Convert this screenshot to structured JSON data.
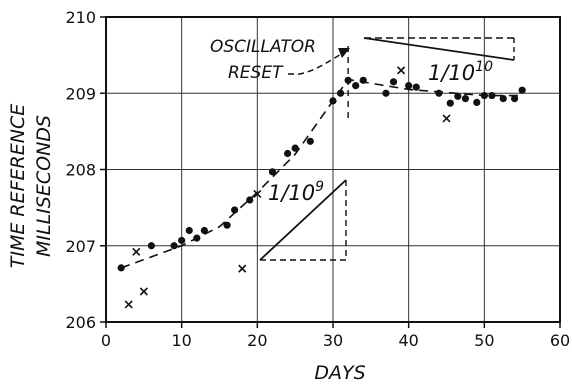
{
  "chart_data": {
    "type": "scatter",
    "title": "",
    "xlabel": "DAYS",
    "ylabel": [
      "TIME REFERENCE",
      "MILLISECONDS"
    ],
    "xlim": [
      0,
      60
    ],
    "ylim": [
      206,
      210
    ],
    "x_ticks": [
      0,
      10,
      20,
      30,
      40,
      50,
      60
    ],
    "y_ticks": [
      206,
      207,
      208,
      209,
      210
    ],
    "grid": true,
    "series": [
      {
        "marker": "dot",
        "points": [
          [
            2,
            206.71
          ],
          [
            6,
            207.0
          ],
          [
            9,
            207.0
          ],
          [
            10,
            207.07
          ],
          [
            11,
            207.2
          ],
          [
            12,
            207.1
          ],
          [
            13,
            207.2
          ],
          [
            16,
            207.27
          ],
          [
            17,
            207.47
          ],
          [
            19,
            207.6
          ],
          [
            22,
            207.97
          ],
          [
            24,
            208.21
          ],
          [
            25,
            208.28
          ],
          [
            27,
            208.37
          ],
          [
            30,
            208.9
          ],
          [
            31,
            209.0
          ],
          [
            32,
            209.17
          ],
          [
            33,
            209.1
          ],
          [
            34,
            209.17
          ],
          [
            37,
            209.0
          ],
          [
            38,
            209.15
          ],
          [
            40,
            209.1
          ],
          [
            41,
            209.08
          ],
          [
            44,
            209.0
          ],
          [
            45.5,
            208.87
          ],
          [
            46.5,
            208.96
          ],
          [
            47.5,
            208.93
          ],
          [
            49,
            208.88
          ],
          [
            50,
            208.97
          ],
          [
            51,
            208.97
          ],
          [
            52.5,
            208.93
          ],
          [
            54,
            208.93
          ],
          [
            55,
            209.04
          ]
        ]
      },
      {
        "marker": "x",
        "points": [
          [
            3,
            206.23
          ],
          [
            4,
            206.92
          ],
          [
            5,
            206.4
          ],
          [
            18,
            206.7
          ],
          [
            20,
            207.68
          ],
          [
            39,
            209.3
          ],
          [
            45,
            208.67
          ]
        ]
      }
    ],
    "trend_line": [
      [
        2,
        206.71
      ],
      [
        10,
        207.0
      ],
      [
        15,
        207.25
      ],
      [
        20,
        207.7
      ],
      [
        25,
        208.2
      ],
      [
        30,
        208.9
      ],
      [
        32,
        209.18
      ],
      [
        40,
        209.05
      ],
      [
        50,
        208.97
      ],
      [
        55,
        208.97
      ]
    ],
    "reset_day": 32,
    "annotations": {
      "oscillator_reset_line1": "OSCILLATOR",
      "oscillator_reset_line2": "RESET",
      "slope_1e9": "1/10⁹",
      "slope_1e10": "1/10¹⁰",
      "slope_1e9_parts": {
        "num": "1",
        "den": "10",
        "exp": "9"
      },
      "slope_1e10_parts": {
        "num": "1",
        "den": "10",
        "exp": "10"
      }
    }
  }
}
